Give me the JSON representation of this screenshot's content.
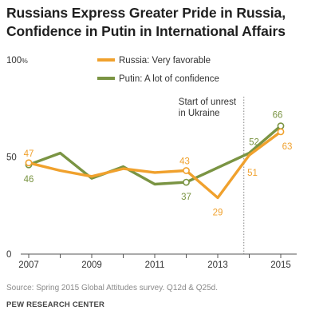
{
  "title_line1": "Russians Express Greater Pride in Russia,",
  "title_line2": "Confidence in Putin in International Affairs",
  "source": "Source: Spring 2015 Global Attitudes survey. Q12d & Q25d.",
  "org": "PEW RESEARCH CENTER",
  "colors": {
    "russia": "#F0A12D",
    "putin": "#7A9443",
    "annotation_line": "#666666"
  },
  "chart_data": {
    "type": "line",
    "xlim": [
      2007,
      2015
    ],
    "ylim": [
      0,
      100
    ],
    "x_ticks": [
      "2007",
      "2009",
      "2011",
      "2013",
      "2015"
    ],
    "y_ticks": [
      "0",
      "50",
      "100%"
    ],
    "legend": "top-center",
    "grid": false,
    "series": [
      {
        "name": "Russia: Very favorable",
        "key": "russia",
        "points": [
          {
            "x": 2007,
            "y": 47
          },
          {
            "x": 2008,
            "y": 43
          },
          {
            "x": 2009,
            "y": 40
          },
          {
            "x": 2010,
            "y": 44
          },
          {
            "x": 2011,
            "y": 42
          },
          {
            "x": 2012,
            "y": 43
          },
          {
            "x": 2013,
            "y": 29
          },
          {
            "x": 2014,
            "y": 51
          },
          {
            "x": 2015,
            "y": 63
          }
        ]
      },
      {
        "name": "Putin: A lot of confidence",
        "key": "putin",
        "points": [
          {
            "x": 2007,
            "y": 46
          },
          {
            "x": 2008,
            "y": 52
          },
          {
            "x": 2009,
            "y": 39
          },
          {
            "x": 2010,
            "y": 45
          },
          {
            "x": 2011,
            "y": 36
          },
          {
            "x": 2012,
            "y": 37
          },
          {
            "x": 2014,
            "y": 52
          },
          {
            "x": 2015,
            "y": 66
          }
        ]
      }
    ],
    "data_labels": [
      {
        "series": "russia",
        "x": 2007,
        "text": "47",
        "pos": "above"
      },
      {
        "series": "putin",
        "x": 2007,
        "text": "46",
        "pos": "below"
      },
      {
        "series": "russia",
        "x": 2012,
        "text": "43",
        "pos": "above"
      },
      {
        "series": "putin",
        "x": 2012,
        "text": "37",
        "pos": "below"
      },
      {
        "series": "russia",
        "x": 2013,
        "text": "29",
        "pos": "below"
      },
      {
        "series": "putin",
        "x": 2014,
        "text": "52",
        "pos": "above"
      },
      {
        "series": "russia",
        "x": 2014,
        "text": "51",
        "pos": "below"
      },
      {
        "series": "putin",
        "x": 2015,
        "text": "66",
        "pos": "above"
      },
      {
        "series": "russia",
        "x": 2015,
        "text": "63",
        "pos": "below"
      }
    ],
    "marker_years": [
      2007,
      2012,
      2015
    ],
    "annotation": {
      "lines": [
        "Start of unrest",
        "in Ukraine"
      ],
      "x": 2013.83
    }
  }
}
